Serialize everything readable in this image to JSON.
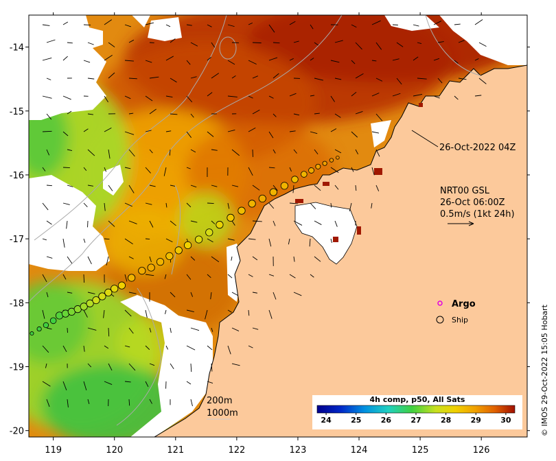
{
  "map": {
    "lon_range": [
      118.6,
      126.75
    ],
    "lat_range": [
      -20.1,
      -13.5
    ],
    "x_ticks": [
      119,
      120,
      121,
      122,
      123,
      124,
      125,
      126
    ],
    "y_ticks": [
      -14,
      -15,
      -16,
      -17,
      -18,
      -19,
      -20
    ],
    "x_tick_labels": [
      "119",
      "120",
      "121",
      "122",
      "123",
      "124",
      "125",
      "126"
    ],
    "y_tick_labels": [
      "-14",
      "-15",
      "-16",
      "-17",
      "-18",
      "-19",
      "-20"
    ]
  },
  "annotations": {
    "time_label": "26-Oct-2022 04Z",
    "current_title": "NRT00 GSL",
    "current_time": "26-Oct 06:00Z",
    "current_scale": "0.5m/s (1kt 24h)",
    "contour_200": "200m",
    "contour_1000": "1000m"
  },
  "legend": {
    "argo_label": "Argo",
    "ship_label": "Ship",
    "argo_color": "#e000e0"
  },
  "colorbar": {
    "title": "4h comp, p50, All Sats",
    "ticks": [
      "24",
      "25",
      "26",
      "27",
      "28",
      "29",
      "30"
    ],
    "tick_values": [
      24,
      25,
      26,
      27,
      28,
      29,
      30
    ],
    "range": [
      23.7,
      30.3
    ]
  },
  "credit": "© IMOS 29-Oct-2022 15:05 Hobart",
  "colors": {
    "land": "#fcc99b",
    "cloud": "#ffffff",
    "warm_dark": "#b22000",
    "warm": "#e07800",
    "mid": "#f0a800",
    "cool": "#c8dc20",
    "cold": "#40c040"
  },
  "ship_track": [
    {
      "lon": 118.65,
      "lat": -18.48,
      "sst": 27.0
    },
    {
      "lon": 118.77,
      "lat": -18.41,
      "sst": 27.0
    },
    {
      "lon": 118.88,
      "lat": -18.35,
      "sst": 27.0
    },
    {
      "lon": 119.0,
      "lat": -18.28,
      "sst": 27.0
    },
    {
      "lon": 119.1,
      "lat": -18.2,
      "sst": 27.1
    },
    {
      "lon": 119.2,
      "lat": -18.17,
      "sst": 27.2
    },
    {
      "lon": 119.3,
      "lat": -18.14,
      "sst": 27.3
    },
    {
      "lon": 119.4,
      "lat": -18.1,
      "sst": 27.4
    },
    {
      "lon": 119.5,
      "lat": -18.06,
      "sst": 27.5
    },
    {
      "lon": 119.6,
      "lat": -18.01,
      "sst": 27.6
    },
    {
      "lon": 119.7,
      "lat": -17.96,
      "sst": 27.8
    },
    {
      "lon": 119.8,
      "lat": -17.9,
      "sst": 27.9
    },
    {
      "lon": 119.9,
      "lat": -17.84,
      "sst": 28.0
    },
    {
      "lon": 120.0,
      "lat": -17.78,
      "sst": 28.1
    },
    {
      "lon": 120.12,
      "lat": -17.73,
      "sst": 28.3
    },
    {
      "lon": 120.28,
      "lat": -17.61,
      "sst": 28.6
    },
    {
      "lon": 120.45,
      "lat": -17.5,
      "sst": 28.7
    },
    {
      "lon": 120.6,
      "lat": -17.45,
      "sst": 28.7
    },
    {
      "lon": 120.75,
      "lat": -17.36,
      "sst": 28.6
    },
    {
      "lon": 120.9,
      "lat": -17.27,
      "sst": 28.5
    },
    {
      "lon": 121.05,
      "lat": -17.18,
      "sst": 28.4
    },
    {
      "lon": 121.2,
      "lat": -17.1,
      "sst": 28.3
    },
    {
      "lon": 121.38,
      "lat": -17.01,
      "sst": 28.0
    },
    {
      "lon": 121.55,
      "lat": -16.9,
      "sst": 27.9
    },
    {
      "lon": 121.72,
      "lat": -16.78,
      "sst": 28.2
    },
    {
      "lon": 121.9,
      "lat": -16.67,
      "sst": 28.4
    },
    {
      "lon": 122.08,
      "lat": -16.56,
      "sst": 28.5
    },
    {
      "lon": 122.25,
      "lat": -16.45,
      "sst": 28.6
    },
    {
      "lon": 122.42,
      "lat": -16.37,
      "sst": 28.7
    },
    {
      "lon": 122.6,
      "lat": -16.27,
      "sst": 28.6
    },
    {
      "lon": 122.78,
      "lat": -16.17,
      "sst": 28.6
    },
    {
      "lon": 122.95,
      "lat": -16.07,
      "sst": 28.5
    },
    {
      "lon": 123.1,
      "lat": -15.99,
      "sst": 28.6
    },
    {
      "lon": 123.22,
      "lat": -15.93,
      "sst": 28.7
    },
    {
      "lon": 123.33,
      "lat": -15.87,
      "sst": 28.8
    },
    {
      "lon": 123.44,
      "lat": -15.82,
      "sst": 28.8
    },
    {
      "lon": 123.55,
      "lat": -15.77,
      "sst": 28.9
    },
    {
      "lon": 123.65,
      "lat": -15.73,
      "sst": 29.0
    }
  ]
}
